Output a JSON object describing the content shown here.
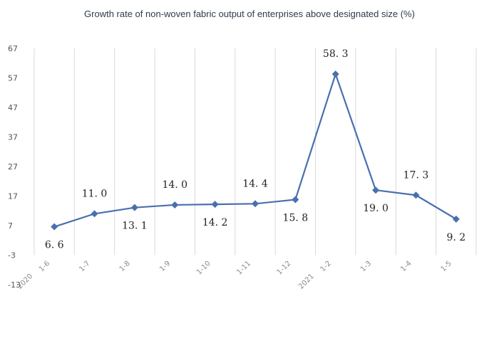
{
  "chart_data": {
    "type": "line",
    "title": "Growth rate of non-woven fabric output of enterprises above designated size (%)",
    "categories": [
      "2020 1-6",
      "1-7",
      "1-8",
      "1-9",
      "1-10",
      "1-11",
      "1-12",
      "2021 1-2",
      "1-3",
      "1-4",
      "1-5"
    ],
    "category_labels": [
      "1-6",
      "1-7",
      "1-8",
      "1-9",
      "1-10",
      "1-11",
      "1-12",
      "1-2",
      "1-3",
      "1-4",
      "1-5"
    ],
    "year_labels": [
      {
        "text": "2020",
        "index": 0
      },
      {
        "text": "2021",
        "index": 7
      }
    ],
    "series": [
      {
        "values": [
          6.6,
          11.0,
          13.1,
          14.0,
          14.2,
          14.4,
          15.8,
          58.3,
          19.0,
          17.3,
          9.2
        ]
      }
    ],
    "data_labels": [
      "6. 6",
      "11. 0",
      "13. 1",
      "14. 0",
      "14. 2",
      "14. 4",
      "15. 8",
      "58. 3",
      "19. 0",
      "17. 3",
      "9. 2"
    ],
    "label_positions": [
      "below",
      "above",
      "below",
      "above",
      "below",
      "above",
      "below",
      "above",
      "below",
      "above",
      "below"
    ],
    "yticks": [
      -13,
      -3,
      7,
      17,
      27,
      37,
      47,
      57,
      67
    ],
    "ylim": [
      -13,
      67
    ],
    "xlabel": "",
    "ylabel": "",
    "grid": "vertical",
    "colors": {
      "line": "#4a6fae",
      "marker": "#4a6fae",
      "grid": "#d9d9d9"
    }
  }
}
